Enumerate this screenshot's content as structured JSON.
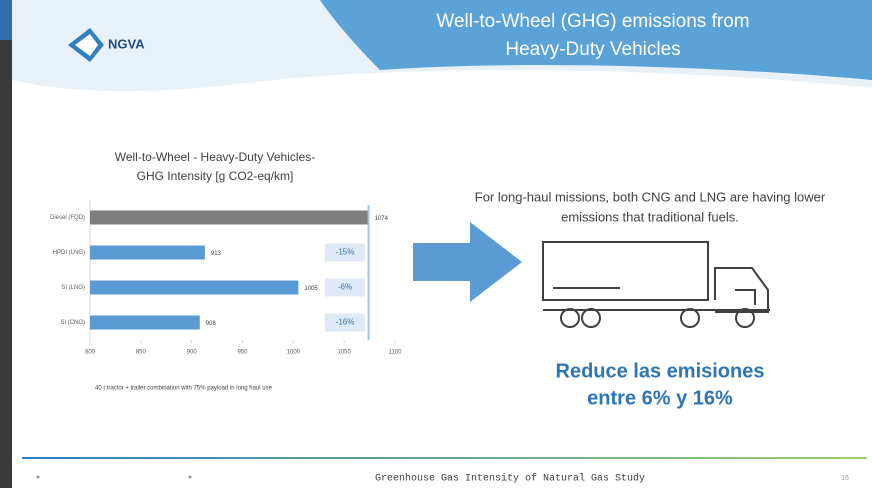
{
  "slide": {
    "logo": "NGVA",
    "title_lines": [
      "Well-to-Wheel (GHG) emissions from",
      "Heavy-Duty Vehicles"
    ],
    "message_lines": [
      "For long-haul missions, both CNG and LNG are having lower",
      "emissions that traditional fuels."
    ],
    "highlight_lines": [
      "Reduce las emisiones",
      "entre 6% y 16%"
    ],
    "footer": "Greenhouse Gas Intensity of Natural Gas Study",
    "page_number": "16"
  },
  "chart_data": {
    "type": "hbar",
    "title_lines": [
      "Well-to-Wheel - Heavy-Duty Vehicles-",
      "GHG Intensity [g CO2-eq/km]"
    ],
    "categories": [
      "Diesel (FQD)",
      "HPDI (LNG)",
      "SI (LNG)",
      "SI (CNG)"
    ],
    "values": [
      1074,
      913,
      1005,
      908
    ],
    "colors": [
      "#7f7f7f",
      "#5b9bd5",
      "#5b9bd5",
      "#5b9bd5"
    ],
    "annotations": [
      null,
      "-15%",
      "-6%",
      "-16%"
    ],
    "xlim": [
      800,
      1100
    ],
    "xticks": [
      800,
      850,
      900,
      950,
      1000,
      1050,
      1100
    ],
    "note": "40 t tractor + trailer combination with 75% payload in long haul use"
  }
}
